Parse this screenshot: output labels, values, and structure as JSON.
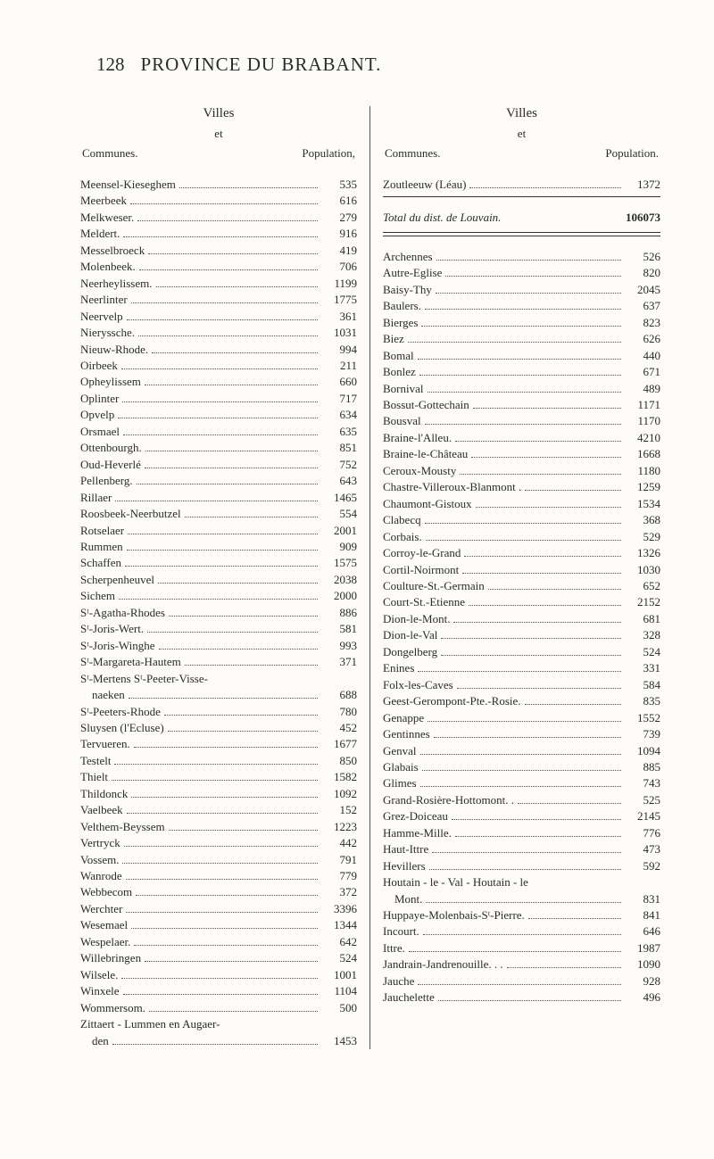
{
  "page_number": "128",
  "title": "PROVINCE DU BRABANT.",
  "col_heading": "Villes",
  "col_sub": "et",
  "label_communes": "Communes.",
  "label_population_left": "Population,",
  "label_population_right": "Population.",
  "zoutleeuw": {
    "name": "Zoutleeuw (Léau)",
    "value": "1372"
  },
  "total": {
    "label": "Total du dist. de Louvain.",
    "value": "106073"
  },
  "left": [
    {
      "name": "Meensel-Kieseghem",
      "value": "535"
    },
    {
      "name": "Meerbeek",
      "value": "616"
    },
    {
      "name": "Melkweser.",
      "value": "279"
    },
    {
      "name": "Meldert.",
      "value": "916"
    },
    {
      "name": "Messelbroeck",
      "value": "419"
    },
    {
      "name": "Molenbeek.",
      "value": "706"
    },
    {
      "name": "Neerheylissem.",
      "value": "1199"
    },
    {
      "name": "Neerlinter",
      "value": "1775"
    },
    {
      "name": "Neervelp",
      "value": "361"
    },
    {
      "name": "Nieryssche.",
      "value": "1031"
    },
    {
      "name": "Nieuw-Rhode.",
      "value": "994"
    },
    {
      "name": "Oirbeek",
      "value": "211"
    },
    {
      "name": "Opheylissem",
      "value": "660"
    },
    {
      "name": "Oplinter",
      "value": "717"
    },
    {
      "name": "Opvelp",
      "value": "634"
    },
    {
      "name": "Orsmael",
      "value": "635"
    },
    {
      "name": "Ottenbourgh.",
      "value": "851"
    },
    {
      "name": "Oud-Heverlé",
      "value": "752"
    },
    {
      "name": "Pellenberg.",
      "value": "643"
    },
    {
      "name": "Rillaer",
      "value": "1465"
    },
    {
      "name": "Roosbeek-Neerbutzel",
      "value": "554"
    },
    {
      "name": "Rotselaer",
      "value": "2001"
    },
    {
      "name": "Rummen",
      "value": "909"
    },
    {
      "name": "Schaffen",
      "value": "1575"
    },
    {
      "name": "Scherpenheuvel",
      "value": "2038"
    },
    {
      "name": "Sichem",
      "value": "2000"
    },
    {
      "name": "Sᵗ-Agatha-Rhodes",
      "value": "886"
    },
    {
      "name": "Sᵗ-Joris-Wert.",
      "value": "581"
    },
    {
      "name": "Sᵗ-Joris-Winghe",
      "value": "993"
    },
    {
      "name": "Sᵗ-Margareta-Hautem",
      "value": "371"
    },
    {
      "name": "Sᵗ-Mertens Sᵗ-Peeter-Visse-",
      "value": ""
    },
    {
      "name": "    naeken",
      "value": "688"
    },
    {
      "name": "Sᵗ-Peeters-Rhode",
      "value": "780"
    },
    {
      "name": "Sluysen (l'Ecluse)",
      "value": "452"
    },
    {
      "name": "Tervueren.",
      "value": "1677"
    },
    {
      "name": "Testelt",
      "value": "850"
    },
    {
      "name": "Thielt",
      "value": "1582"
    },
    {
      "name": "Thildonck",
      "value": "1092"
    },
    {
      "name": "Vaelbeek",
      "value": "152"
    },
    {
      "name": "Velthem-Beyssem",
      "value": "1223"
    },
    {
      "name": "Vertryck",
      "value": "442"
    },
    {
      "name": "Vossem.",
      "value": "791"
    },
    {
      "name": "Wanrode",
      "value": "779"
    },
    {
      "name": "Webbecom",
      "value": "372"
    },
    {
      "name": "Werchter",
      "value": "3396"
    },
    {
      "name": "Wesemael",
      "value": "1344"
    },
    {
      "name": "Wespelaer.",
      "value": "642"
    },
    {
      "name": "Willebringen",
      "value": "524"
    },
    {
      "name": "Wilsele.",
      "value": "1001"
    },
    {
      "name": "Winxele",
      "value": "1104"
    },
    {
      "name": "Wommersom.",
      "value": "500"
    },
    {
      "name": "Zittaert - Lummen en Augaer-",
      "value": ""
    },
    {
      "name": "    den",
      "value": "1453"
    }
  ],
  "right": [
    {
      "name": "Archennes",
      "value": "526"
    },
    {
      "name": "Autre-Eglise",
      "value": "820"
    },
    {
      "name": "Baisy-Thy",
      "value": "2045"
    },
    {
      "name": "Baulers.",
      "value": "637"
    },
    {
      "name": "Bierges",
      "value": "823"
    },
    {
      "name": "Biez",
      "value": "626"
    },
    {
      "name": "Bomal",
      "value": "440"
    },
    {
      "name": "Bonlez",
      "value": "671"
    },
    {
      "name": "Bornival",
      "value": "489"
    },
    {
      "name": "Bossut-Gottechain",
      "value": "1171"
    },
    {
      "name": "Bousval",
      "value": "1170"
    },
    {
      "name": "Braine-l'Alleu.",
      "value": "4210"
    },
    {
      "name": "Braine-le-Château",
      "value": "1668"
    },
    {
      "name": "Ceroux-Mousty",
      "value": "1180"
    },
    {
      "name": "Chastre-Villeroux-Blanmont .",
      "value": "1259"
    },
    {
      "name": "Chaumont-Gistoux",
      "value": "1534"
    },
    {
      "name": "Clabecq",
      "value": "368"
    },
    {
      "name": "Corbais.",
      "value": "529"
    },
    {
      "name": "Corroy-le-Grand",
      "value": "1326"
    },
    {
      "name": "Cortil-Noirmont",
      "value": "1030"
    },
    {
      "name": "Coulture-St.-Germain",
      "value": "652"
    },
    {
      "name": "Court-St.-Etienne",
      "value": "2152"
    },
    {
      "name": "Dion-le-Mont.",
      "value": "681"
    },
    {
      "name": "Dion-le-Val",
      "value": "328"
    },
    {
      "name": "Dongelberg",
      "value": "524"
    },
    {
      "name": "Enines",
      "value": "331"
    },
    {
      "name": "Folx-les-Caves",
      "value": "584"
    },
    {
      "name": "Geest-Gerompont-Pte.-Rosie.",
      "value": "835"
    },
    {
      "name": "Genappe",
      "value": "1552"
    },
    {
      "name": "Gentinnes",
      "value": "739"
    },
    {
      "name": "Genval",
      "value": "1094"
    },
    {
      "name": "Glabais",
      "value": "885"
    },
    {
      "name": "Glimes",
      "value": "743"
    },
    {
      "name": "Grand-Rosière-Hottomont. .",
      "value": "525"
    },
    {
      "name": "Grez-Doiceau",
      "value": "2145"
    },
    {
      "name": "Hamme-Mille.",
      "value": "776"
    },
    {
      "name": "Haut-Ittre",
      "value": "473"
    },
    {
      "name": "Hevillers",
      "value": "592"
    },
    {
      "name": "Houtain - le - Val - Houtain - le",
      "value": ""
    },
    {
      "name": "    Mont.",
      "value": "831"
    },
    {
      "name": "Huppaye-Molenbais-Sᵗ-Pierre.",
      "value": "841"
    },
    {
      "name": "Incourt.",
      "value": "646"
    },
    {
      "name": "Ittre.",
      "value": "1987"
    },
    {
      "name": "Jandrain-Jandrenouille.  .  .",
      "value": "1090"
    },
    {
      "name": "Jauche",
      "value": "928"
    },
    {
      "name": "Jauchelette",
      "value": "496"
    }
  ]
}
